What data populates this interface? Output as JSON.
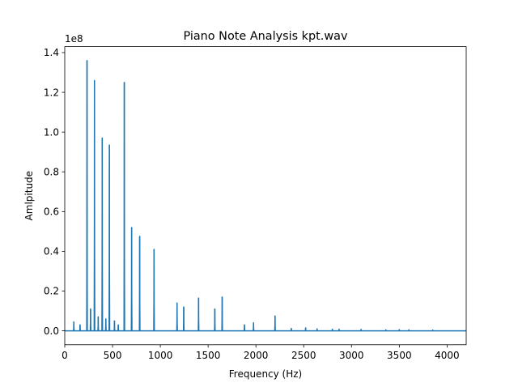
{
  "chart_data": {
    "type": "line",
    "title": "Piano Note Analysis kpt.wav",
    "xlabel": "Frequency (Hz)",
    "ylabel": "Amlpitude",
    "y_scale_label": "1e8",
    "xlim": [
      0,
      4200
    ],
    "ylim": [
      -0.07,
      1.43
    ],
    "x_ticks": [
      0,
      500,
      1000,
      1500,
      2000,
      2500,
      3000,
      3500,
      4000
    ],
    "x_tick_labels": [
      "0",
      "500",
      "1000",
      "1500",
      "2000",
      "2500",
      "3000",
      "3500",
      "4000"
    ],
    "y_ticks": [
      0.0,
      0.2,
      0.4,
      0.6,
      0.8,
      1.0,
      1.2,
      1.4
    ],
    "y_tick_labels": [
      "0.0",
      "0.2",
      "0.4",
      "0.6",
      "0.8",
      "1.0",
      "1.2",
      "1.4"
    ],
    "grid": false,
    "line_color": "#1f77b4",
    "series": [
      {
        "peaks": [
          {
            "x": 95,
            "y": 0.045
          },
          {
            "x": 160,
            "y": 0.03
          },
          {
            "x": 233,
            "y": 1.36
          },
          {
            "x": 270,
            "y": 0.11
          },
          {
            "x": 311,
            "y": 1.26
          },
          {
            "x": 350,
            "y": 0.07
          },
          {
            "x": 392,
            "y": 0.97
          },
          {
            "x": 430,
            "y": 0.06
          },
          {
            "x": 467,
            "y": 0.935
          },
          {
            "x": 520,
            "y": 0.05
          },
          {
            "x": 560,
            "y": 0.03
          },
          {
            "x": 623,
            "y": 1.25
          },
          {
            "x": 700,
            "y": 0.52
          },
          {
            "x": 784,
            "y": 0.475
          },
          {
            "x": 934,
            "y": 0.41
          },
          {
            "x": 1175,
            "y": 0.14
          },
          {
            "x": 1245,
            "y": 0.12
          },
          {
            "x": 1400,
            "y": 0.165
          },
          {
            "x": 1570,
            "y": 0.11
          },
          {
            "x": 1647,
            "y": 0.17
          },
          {
            "x": 1880,
            "y": 0.03
          },
          {
            "x": 1975,
            "y": 0.04
          },
          {
            "x": 2200,
            "y": 0.075
          },
          {
            "x": 2370,
            "y": 0.012
          },
          {
            "x": 2520,
            "y": 0.015
          },
          {
            "x": 2640,
            "y": 0.01
          },
          {
            "x": 2800,
            "y": 0.008
          },
          {
            "x": 2870,
            "y": 0.008
          },
          {
            "x": 3100,
            "y": 0.007
          },
          {
            "x": 3360,
            "y": 0.005
          },
          {
            "x": 3500,
            "y": 0.006
          },
          {
            "x": 3600,
            "y": 0.005
          },
          {
            "x": 3850,
            "y": 0.004
          }
        ]
      }
    ]
  }
}
